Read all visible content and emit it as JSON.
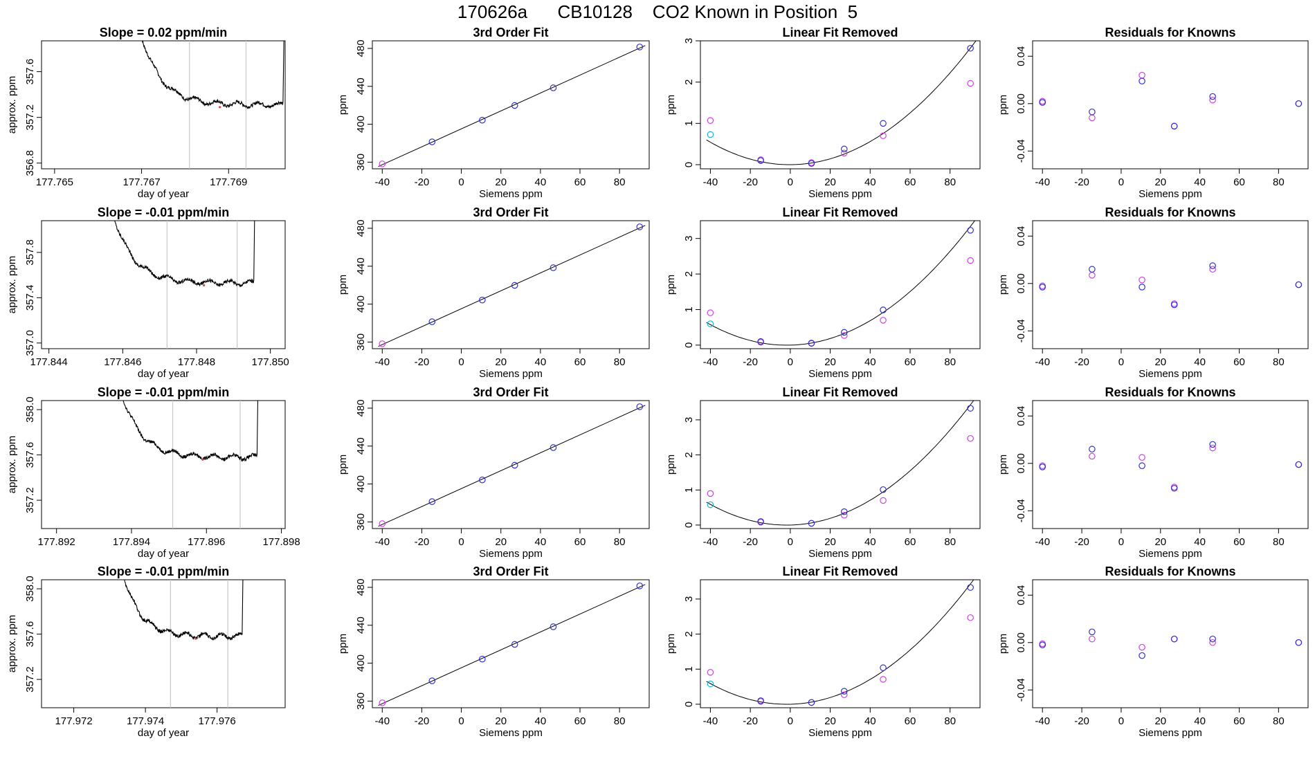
{
  "page": {
    "title": "170626a      CB10128    CO2 Known in Position  5"
  },
  "colors": {
    "trace": "#000000",
    "guide_line": "#c8c8c8",
    "fit_line": "#000000",
    "points_blue": "#3030d0",
    "points_magenta": "#cc44dd",
    "points_cyan": "#18b4d4",
    "marker_red": "#e04040"
  },
  "chart_data": [
    {
      "type": "line",
      "title": "Slope =  0.02  ppm/min",
      "xlabel": "day of year",
      "ylabel": "approx. ppm",
      "xlim": [
        177.7647,
        177.7703
      ],
      "ylim": [
        356.75,
        357.87
      ],
      "xticks": [
        177.765,
        177.767,
        177.769
      ],
      "yticks": [
        356.8,
        357.2,
        357.6
      ],
      "trace": {
        "t_start": 177.7667,
        "t_rise": 177.77025,
        "top": 357.87,
        "plateau": 357.31,
        "noise": 0.015
      },
      "vlines": [
        177.7681,
        177.7694
      ],
      "marker": {
        "x": 177.7688,
        "y": 357.29
      }
    },
    {
      "type": "scatter",
      "title": "3rd Order Fit",
      "xlabel": "Siemens ppm",
      "ylabel": "ppm",
      "xlim": [
        -45,
        95
      ],
      "ylim": [
        353,
        488
      ],
      "xticks": [
        -40,
        -20,
        0,
        20,
        40,
        60,
        80
      ],
      "yticks": [
        360,
        400,
        440,
        480
      ],
      "fit": "line",
      "blue_x": [
        -14.8,
        10.6,
        27.0,
        46.5,
        90.2
      ],
      "blue_y": [
        381.4,
        404.3,
        419.8,
        438.4,
        481.5
      ],
      "magenta_x": [
        -40.0
      ],
      "magenta_y": [
        358.2
      ]
    },
    {
      "type": "scatter",
      "title": "Linear Fit Removed",
      "xlabel": "Siemens ppm",
      "ylabel": "ppm",
      "xlim": [
        -45,
        95
      ],
      "ylim": [
        -0.1,
        3.0
      ],
      "xticks": [
        -40,
        -20,
        0,
        20,
        40,
        60,
        80
      ],
      "yticks": [
        0.0,
        1.0,
        2.0,
        3.0
      ],
      "fit": "quad",
      "curve_a": 0.000345,
      "curve_b": 0.0002,
      "blue_x": [
        -14.8,
        10.6,
        27.0,
        46.5,
        90.2
      ],
      "blue_y": [
        0.1,
        0.03,
        0.38,
        1.0,
        2.82
      ],
      "magenta_x": [
        -40.0,
        -14.8,
        10.6,
        27.0,
        46.5,
        90.2
      ],
      "magenta_y": [
        1.07,
        0.12,
        0.05,
        0.28,
        0.7,
        1.97
      ],
      "cyan_x": [
        -40.0
      ],
      "cyan_y": [
        0.73
      ]
    },
    {
      "type": "scatter",
      "title": "Residuals for Knowns",
      "xlabel": "Siemens ppm",
      "ylabel": "ppm",
      "xlim": [
        -45,
        95
      ],
      "ylim": [
        -0.055,
        0.053
      ],
      "xticks": [
        -40,
        -20,
        0,
        20,
        40,
        60,
        80
      ],
      "yticks": [
        -0.04,
        0.0,
        0.04
      ],
      "fit": "none",
      "blue_x": [
        -40.0,
        -14.8,
        10.6,
        27.0,
        46.5,
        90.2
      ],
      "blue_y": [
        0.001,
        -0.007,
        0.019,
        -0.019,
        0.006,
        0.0
      ],
      "magenta_x": [
        -40.0,
        -14.8,
        10.6,
        27.0,
        46.5,
        90.2
      ],
      "magenta_y": [
        0.002,
        -0.012,
        0.024,
        -0.019,
        0.003,
        0.0
      ]
    },
    {
      "type": "line",
      "title": "Slope =  -0.01  ppm/min",
      "xlabel": "day of year",
      "ylabel": "approx. ppm",
      "xlim": [
        177.8438,
        177.8504
      ],
      "ylim": [
        356.95,
        358.08
      ],
      "xticks": [
        177.844,
        177.846,
        177.848,
        177.85
      ],
      "yticks": [
        357.0,
        357.4,
        357.8
      ],
      "trace": {
        "t_start": 177.8454,
        "t_rise": 177.84955,
        "top": 358.08,
        "plateau": 357.53,
        "noise": 0.015
      },
      "vlines": [
        177.8472,
        177.8491
      ],
      "marker": {
        "x": 177.8482,
        "y": 357.51
      }
    },
    {
      "type": "scatter",
      "title": "3rd Order Fit",
      "xlabel": "Siemens ppm",
      "ylabel": "ppm",
      "xlim": [
        -45,
        95
      ],
      "ylim": [
        353,
        488
      ],
      "xticks": [
        -40,
        -20,
        0,
        20,
        40,
        60,
        80
      ],
      "yticks": [
        360,
        400,
        440,
        480
      ],
      "fit": "line",
      "blue_x": [
        -14.8,
        10.6,
        27.0,
        46.5,
        90.2
      ],
      "blue_y": [
        381.4,
        404.3,
        419.8,
        438.4,
        481.5
      ],
      "magenta_x": [
        -40.0
      ],
      "magenta_y": [
        358.2
      ]
    },
    {
      "type": "scatter",
      "title": "Linear Fit Removed",
      "xlabel": "Siemens ppm",
      "ylabel": "ppm",
      "xlim": [
        -45,
        95
      ],
      "ylim": [
        -0.1,
        3.5
      ],
      "xticks": [
        -40,
        -20,
        0,
        20,
        40,
        60,
        80
      ],
      "yticks": [
        0.0,
        1.0,
        2.0,
        3.0
      ],
      "fit": "quad",
      "curve_a": 0.000395,
      "curve_b": 0.0014,
      "blue_x": [
        -14.8,
        10.6,
        27.0,
        46.5,
        90.2
      ],
      "blue_y": [
        0.1,
        0.05,
        0.36,
        0.99,
        3.23
      ],
      "magenta_x": [
        -40.0,
        -14.8,
        10.6,
        27.0,
        46.5,
        90.2
      ],
      "magenta_y": [
        0.91,
        0.08,
        0.06,
        0.27,
        0.7,
        2.38
      ],
      "cyan_x": [
        -40.0
      ],
      "cyan_y": [
        0.6
      ]
    },
    {
      "type": "scatter",
      "title": "Residuals for Knowns",
      "xlabel": "Siemens ppm",
      "ylabel": "ppm",
      "xlim": [
        -45,
        95
      ],
      "ylim": [
        -0.055,
        0.053
      ],
      "xticks": [
        -40,
        -20,
        0,
        20,
        40,
        60,
        80
      ],
      "yticks": [
        -0.04,
        0.0,
        0.04
      ],
      "fit": "none",
      "blue_x": [
        -40.0,
        -14.8,
        10.6,
        27.0,
        46.5,
        90.2
      ],
      "blue_y": [
        -0.003,
        0.012,
        -0.003,
        -0.018,
        0.015,
        -0.001
      ],
      "magenta_x": [
        -40.0,
        -14.8,
        10.6,
        27.0,
        46.5,
        90.2
      ],
      "magenta_y": [
        -0.002,
        0.007,
        0.003,
        -0.017,
        0.012,
        -0.001
      ]
    },
    {
      "type": "line",
      "title": "Slope =  -0.01  ppm/min",
      "xlabel": "day of year",
      "ylabel": "approx. ppm",
      "xlim": [
        177.8916,
        177.8981
      ],
      "ylim": [
        356.95,
        358.08
      ],
      "xticks": [
        177.892,
        177.894,
        177.896,
        177.898
      ],
      "yticks": [
        357.2,
        357.6,
        358.0
      ],
      "trace": {
        "t_start": 177.8934,
        "t_rise": 177.89735,
        "top": 358.08,
        "plateau": 357.58,
        "noise": 0.015
      },
      "vlines": [
        177.8951,
        177.8969
      ],
      "marker": {
        "x": 177.8959,
        "y": 357.56
      }
    },
    {
      "type": "scatter",
      "title": "3rd Order Fit",
      "xlabel": "Siemens ppm",
      "ylabel": "ppm",
      "xlim": [
        -45,
        95
      ],
      "ylim": [
        353,
        488
      ],
      "xticks": [
        -40,
        -20,
        0,
        20,
        40,
        60,
        80
      ],
      "yticks": [
        360,
        400,
        440,
        480
      ],
      "fit": "line",
      "blue_x": [
        -14.8,
        10.6,
        27.0,
        46.5,
        90.2
      ],
      "blue_y": [
        381.4,
        404.3,
        419.8,
        438.4,
        481.5
      ],
      "magenta_x": [
        -40.0
      ],
      "magenta_y": [
        358.2
      ]
    },
    {
      "type": "scatter",
      "title": "Linear Fit Removed",
      "xlabel": "Siemens ppm",
      "ylabel": "ppm",
      "xlim": [
        -45,
        95
      ],
      "ylim": [
        -0.1,
        3.55
      ],
      "xticks": [
        -40,
        -20,
        0,
        20,
        40,
        60,
        80
      ],
      "yticks": [
        0.0,
        1.0,
        2.0,
        3.0
      ],
      "fit": "quad",
      "curve_a": 0.000405,
      "curve_b": 0.0015,
      "blue_x": [
        -14.8,
        10.6,
        27.0,
        46.5,
        90.2
      ],
      "blue_y": [
        0.1,
        0.05,
        0.38,
        1.01,
        3.33
      ],
      "magenta_x": [
        -40.0,
        -14.8,
        10.6,
        27.0,
        46.5,
        90.2
      ],
      "magenta_y": [
        0.9,
        0.08,
        0.05,
        0.28,
        0.7,
        2.47
      ],
      "cyan_x": [
        -40.0
      ],
      "cyan_y": [
        0.58
      ]
    },
    {
      "type": "scatter",
      "title": "Residuals for Knowns",
      "xlabel": "Siemens ppm",
      "ylabel": "ppm",
      "xlim": [
        -45,
        95
      ],
      "ylim": [
        -0.055,
        0.053
      ],
      "xticks": [
        -40,
        -20,
        0,
        20,
        40,
        60,
        80
      ],
      "yticks": [
        -0.04,
        0.0,
        0.04
      ],
      "fit": "none",
      "blue_x": [
        -40.0,
        -14.8,
        10.6,
        27.0,
        46.5,
        90.2
      ],
      "blue_y": [
        -0.003,
        0.012,
        -0.002,
        -0.021,
        0.016,
        -0.001
      ],
      "magenta_x": [
        -40.0,
        -14.8,
        10.6,
        27.0,
        46.5,
        90.2
      ],
      "magenta_y": [
        -0.002,
        0.006,
        0.005,
        -0.02,
        0.013,
        -0.001
      ]
    },
    {
      "type": "line",
      "title": "Slope =  -0.01  ppm/min",
      "xlabel": "day of year",
      "ylabel": "approx. ppm",
      "xlim": [
        177.9711,
        177.9779
      ],
      "ylim": [
        356.95,
        358.08
      ],
      "xticks": [
        177.972,
        177.974,
        177.976
      ],
      "yticks": [
        357.2,
        357.6,
        358.0
      ],
      "trace": {
        "t_start": 177.97305,
        "t_rise": 177.9767,
        "top": 358.08,
        "plateau": 357.58,
        "noise": 0.015
      },
      "vlines": [
        177.9747,
        177.9763
      ],
      "marker": {
        "x": 177.9754,
        "y": 357.56
      }
    },
    {
      "type": "scatter",
      "title": "3rd Order Fit",
      "xlabel": "Siemens ppm",
      "ylabel": "ppm",
      "xlim": [
        -45,
        95
      ],
      "ylim": [
        353,
        488
      ],
      "xticks": [
        -40,
        -20,
        0,
        20,
        40,
        60,
        80
      ],
      "yticks": [
        360,
        400,
        440,
        480
      ],
      "fit": "line",
      "blue_x": [
        -14.8,
        10.6,
        27.0,
        46.5,
        90.2
      ],
      "blue_y": [
        381.4,
        404.3,
        419.8,
        438.4,
        481.5
      ],
      "magenta_x": [
        -40.0
      ],
      "magenta_y": [
        358.2
      ]
    },
    {
      "type": "scatter",
      "title": "Linear Fit Removed",
      "xlabel": "Siemens ppm",
      "ylabel": "ppm",
      "xlim": [
        -45,
        95
      ],
      "ylim": [
        -0.1,
        3.55
      ],
      "xticks": [
        -40,
        -20,
        0,
        20,
        40,
        60,
        80
      ],
      "yticks": [
        0.0,
        1.0,
        2.0,
        3.0
      ],
      "fit": "quad",
      "curve_a": 0.000405,
      "curve_b": 0.0015,
      "blue_x": [
        -14.8,
        10.6,
        27.0,
        46.5,
        90.2
      ],
      "blue_y": [
        0.1,
        0.05,
        0.37,
        1.04,
        3.33
      ],
      "magenta_x": [
        -40.0,
        -14.8,
        10.6,
        27.0,
        46.5,
        90.2
      ],
      "magenta_y": [
        0.91,
        0.08,
        0.05,
        0.27,
        0.71,
        2.47
      ],
      "cyan_x": [
        -40.0
      ],
      "cyan_y": [
        0.58
      ]
    },
    {
      "type": "scatter",
      "title": "Residuals for Knowns",
      "xlabel": "Siemens ppm",
      "ylabel": "ppm",
      "xlim": [
        -45,
        95
      ],
      "ylim": [
        -0.055,
        0.053
      ],
      "xticks": [
        -40,
        -20,
        0,
        20,
        40,
        60,
        80
      ],
      "yticks": [
        -0.04,
        0.0,
        0.04
      ],
      "fit": "none",
      "blue_x": [
        -40.0,
        -14.8,
        10.6,
        27.0,
        46.5,
        90.2
      ],
      "blue_y": [
        -0.002,
        0.009,
        -0.011,
        0.003,
        0.003,
        0.0
      ],
      "magenta_x": [
        -40.0,
        -14.8,
        10.6,
        27.0,
        46.5,
        90.2
      ],
      "magenta_y": [
        -0.001,
        0.003,
        -0.004,
        0.003,
        0.0,
        0.0
      ]
    }
  ]
}
